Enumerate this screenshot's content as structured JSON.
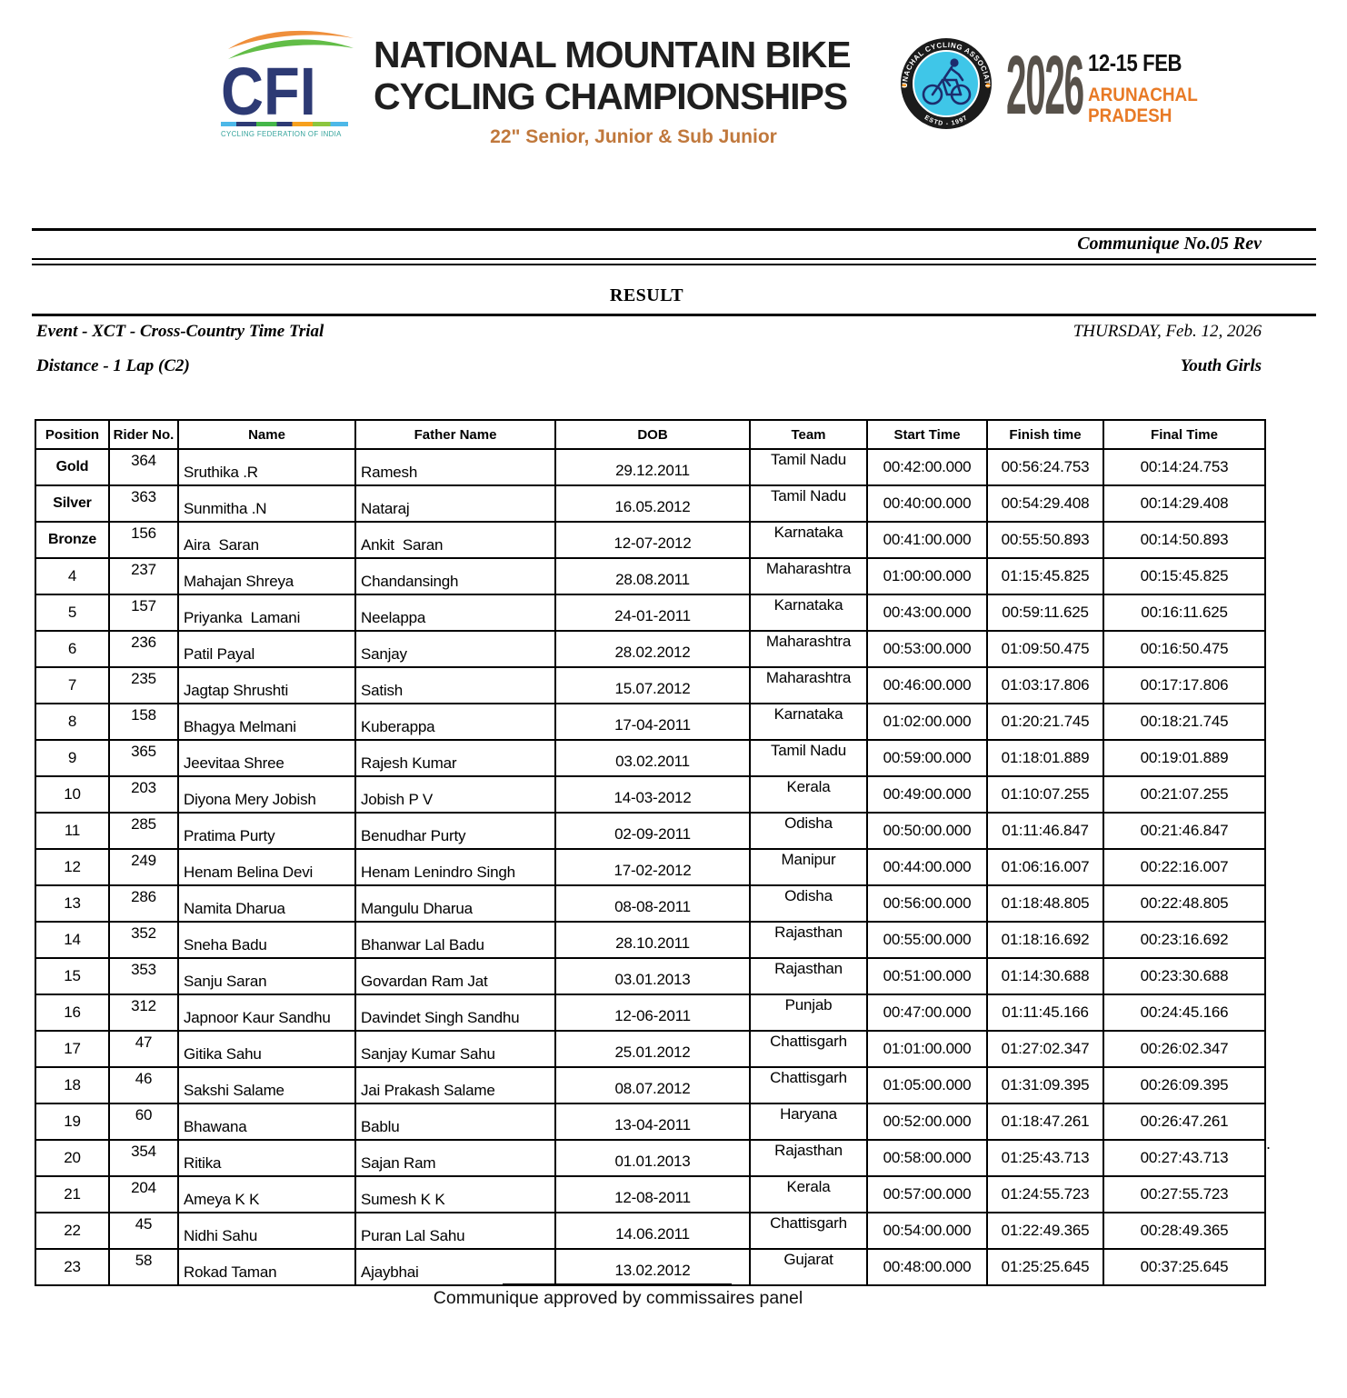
{
  "colors": {
    "cfi_navy": "#2d3a74",
    "cfi_teal": "#33a39b",
    "wave_orange": "#ef8f3b",
    "wave_green": "#62bd47",
    "subtitle_brown": "#c0783c",
    "badge_cyan": "#3fc6e8",
    "year_gray": "#57514a",
    "place_orange": "#e87a26"
  },
  "header": {
    "cfi": {
      "acronym": "CFI",
      "org": "CYCLING FEDERATION OF INDIA"
    },
    "title_line1": "NATIONAL MOUNTAIN BIKE",
    "title_line2": "CYCLING CHAMPIONSHIPS",
    "subtitle": "22\" Senior, Junior & Sub Junior",
    "badge": {
      "ring_top": "ARUNACHAL CYCLING ASSOCIATION",
      "ring_bottom": "ESTD - 1997"
    },
    "event_year": "2026",
    "event_dates": "12-15 FEB",
    "event_place_line1": "ARUNACHAL",
    "event_place_line2": "PRADESH"
  },
  "document": {
    "communique": "Communique No.05 Rev",
    "result_title": "RESULT",
    "event": "Event - XCT - Cross-Country Time Trial",
    "day_date": "THURSDAY, Feb. 12, 2026",
    "distance": "Distance - 1 Lap (C2)",
    "category": "Youth Girls"
  },
  "table": {
    "columns": [
      "Position",
      "Rider No.",
      "Name",
      "Father Name",
      "DOB",
      "Team",
      "Start Time",
      "Finish time",
      "Final Time"
    ],
    "rows": [
      [
        "Gold",
        "364",
        "Sruthika .R",
        "Ramesh",
        "29.12.2011",
        "Tamil Nadu",
        "00:42:00.000",
        "00:56:24.753",
        "00:14:24.753"
      ],
      [
        "Silver",
        "363",
        "Sunmitha .N",
        "Nataraj",
        "16.05.2012",
        "Tamil Nadu",
        "00:40:00.000",
        "00:54:29.408",
        "00:14:29.408"
      ],
      [
        "Bronze",
        "156",
        "Aira  Saran",
        "Ankit  Saran",
        "12-07-2012",
        "Karnataka",
        "00:41:00.000",
        "00:55:50.893",
        "00:14:50.893"
      ],
      [
        "4",
        "237",
        "Mahajan Shreya",
        "Chandansingh",
        "28.08.2011",
        "Maharashtra",
        "01:00:00.000",
        "01:15:45.825",
        "00:15:45.825"
      ],
      [
        "5",
        "157",
        "Priyanka  Lamani",
        "Neelappa",
        "24-01-2011",
        "Karnataka",
        "00:43:00.000",
        "00:59:11.625",
        "00:16:11.625"
      ],
      [
        "6",
        "236",
        "Patil Payal",
        "Sanjay",
        "28.02.2012",
        "Maharashtra",
        "00:53:00.000",
        "01:09:50.475",
        "00:16:50.475"
      ],
      [
        "7",
        "235",
        "Jagtap Shrushti",
        "Satish",
        "15.07.2012",
        "Maharashtra",
        "00:46:00.000",
        "01:03:17.806",
        "00:17:17.806"
      ],
      [
        "8",
        "158",
        "Bhagya Melmani",
        "Kuberappa",
        "17-04-2011",
        "Karnataka",
        "01:02:00.000",
        "01:20:21.745",
        "00:18:21.745"
      ],
      [
        "9",
        "365",
        "Jeevitaa Shree",
        "Rajesh Kumar",
        "03.02.2011",
        "Tamil Nadu",
        "00:59:00.000",
        "01:18:01.889",
        "00:19:01.889"
      ],
      [
        "10",
        "203",
        "Diyona Mery Jobish",
        "Jobish P V",
        "14-03-2012",
        "Kerala",
        "00:49:00.000",
        "01:10:07.255",
        "00:21:07.255"
      ],
      [
        "11",
        "285",
        "Pratima Purty",
        "Benudhar Purty",
        "02-09-2011",
        "Odisha",
        "00:50:00.000",
        "01:11:46.847",
        "00:21:46.847"
      ],
      [
        "12",
        "249",
        "Henam Belina Devi",
        "Henam Lenindro Singh",
        "17-02-2012",
        "Manipur",
        "00:44:00.000",
        "01:06:16.007",
        "00:22:16.007"
      ],
      [
        "13",
        "286",
        "Namita Dharua",
        "Mangulu Dharua",
        "08-08-2011",
        "Odisha",
        "00:56:00.000",
        "01:18:48.805",
        "00:22:48.805"
      ],
      [
        "14",
        "352",
        "Sneha Badu",
        "Bhanwar Lal Badu",
        "28.10.2011",
        "Rajasthan",
        "00:55:00.000",
        "01:18:16.692",
        "00:23:16.692"
      ],
      [
        "15",
        "353",
        "Sanju Saran",
        "Govardan Ram Jat",
        "03.01.2013",
        "Rajasthan",
        "00:51:00.000",
        "01:14:30.688",
        "00:23:30.688"
      ],
      [
        "16",
        "312",
        "Japnoor Kaur Sandhu",
        "Davindet Singh Sandhu",
        "12-06-2011",
        "Punjab",
        "00:47:00.000",
        "01:11:45.166",
        "00:24:45.166"
      ],
      [
        "17",
        "47",
        "Gitika Sahu",
        "Sanjay Kumar Sahu",
        "25.01.2012",
        "Chattisgarh",
        "01:01:00.000",
        "01:27:02.347",
        "00:26:02.347"
      ],
      [
        "18",
        "46",
        "Sakshi Salame",
        "Jai Prakash Salame",
        "08.07.2012",
        "Chattisgarh",
        "01:05:00.000",
        "01:31:09.395",
        "00:26:09.395"
      ],
      [
        "19",
        "60",
        "Bhawana",
        "Bablu",
        "13-04-2011",
        "Haryana",
        "00:52:00.000",
        "01:18:47.261",
        "00:26:47.261"
      ],
      [
        "20",
        "354",
        "Ritika",
        "Sajan Ram",
        "01.01.2013",
        "Rajasthan",
        "00:58:00.000",
        "01:25:43.713",
        "00:27:43.713"
      ],
      [
        "21",
        "204",
        "Ameya K K",
        "Sumesh K K",
        "12-08-2011",
        "Kerala",
        "00:57:00.000",
        "01:24:55.723",
        "00:27:55.723"
      ],
      [
        "22",
        "45",
        "Nidhi Sahu",
        "Puran Lal Sahu",
        "14.06.2011",
        "Chattisgarh",
        "00:54:00.000",
        "01:22:49.365",
        "00:28:49.365"
      ],
      [
        "23",
        "58",
        "Rokad Taman",
        "Ajaybhai",
        "13.02.2012",
        "Gujarat",
        "00:48:00.000",
        "01:25:25.645",
        "00:37:25.645"
      ]
    ]
  },
  "footer": {
    "approval": "Communique approved by commissaires panel"
  },
  "stray_mark": "."
}
